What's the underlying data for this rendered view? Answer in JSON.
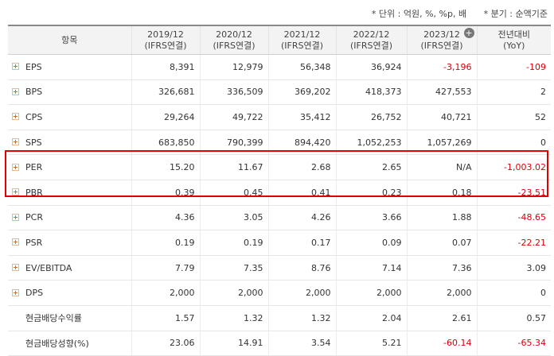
{
  "notes": {
    "unit": "* 단위 : 억원, %, %p, 배",
    "basis": "* 분기 : 순액기준"
  },
  "header": {
    "item_label": "항목",
    "periods": [
      {
        "year": "2019/12",
        "basis": "(IFRS연결)"
      },
      {
        "year": "2020/12",
        "basis": "(IFRS연결)"
      },
      {
        "year": "2021/12",
        "basis": "(IFRS연결)"
      },
      {
        "year": "2022/12",
        "basis": "(IFRS연결)"
      },
      {
        "year": "2023/12",
        "basis": "(IFRS연결)"
      }
    ],
    "yoy_title": "전년대비",
    "yoy_sub": "(YoY)"
  },
  "rows": [
    {
      "label": "EPS",
      "values": [
        "8,391",
        "12,979",
        "56,348",
        "36,924",
        "-3,196"
      ],
      "yoy": "-109"
    },
    {
      "label": "BPS",
      "values": [
        "326,681",
        "336,509",
        "369,202",
        "418,373",
        "427,553"
      ],
      "yoy": "2"
    },
    {
      "label": "CPS",
      "values": [
        "29,264",
        "49,722",
        "35,412",
        "26,752",
        "40,721"
      ],
      "yoy": "52"
    },
    {
      "label": "SPS",
      "values": [
        "683,850",
        "790,399",
        "894,420",
        "1,052,253",
        "1,057,269"
      ],
      "yoy": "0"
    },
    {
      "label": "PER",
      "values": [
        "15.20",
        "11.67",
        "2.68",
        "2.65",
        "N/A"
      ],
      "yoy": "-1,003.02"
    },
    {
      "label": "PBR",
      "values": [
        "0.39",
        "0.45",
        "0.41",
        "0.23",
        "0.18"
      ],
      "yoy": "-23.51"
    },
    {
      "label": "PCR",
      "values": [
        "4.36",
        "3.05",
        "4.26",
        "3.66",
        "1.88"
      ],
      "yoy": "-48.65"
    },
    {
      "label": "PSR",
      "values": [
        "0.19",
        "0.19",
        "0.17",
        "0.09",
        "0.07"
      ],
      "yoy": "-22.21"
    },
    {
      "label": "EV/EBITDA",
      "values": [
        "7.79",
        "7.35",
        "8.76",
        "7.14",
        "7.36"
      ],
      "yoy": "3.09"
    },
    {
      "label": "DPS",
      "values": [
        "2,000",
        "2,000",
        "2,000",
        "2,000",
        "2,000"
      ],
      "yoy": "0"
    },
    {
      "label": "현금배당수익률",
      "values": [
        "1.57",
        "1.32",
        "1.32",
        "2.04",
        "2.61"
      ],
      "yoy": "0.57"
    },
    {
      "label": "현금배당성향(%)",
      "values": [
        "23.06",
        "14.91",
        "3.54",
        "5.21",
        "-60.14"
      ],
      "yoy": "-65.34"
    }
  ],
  "colors": {
    "negative": "#d8000c",
    "highlight_border": "#e00000",
    "expand_icon": "#e06a1a"
  }
}
